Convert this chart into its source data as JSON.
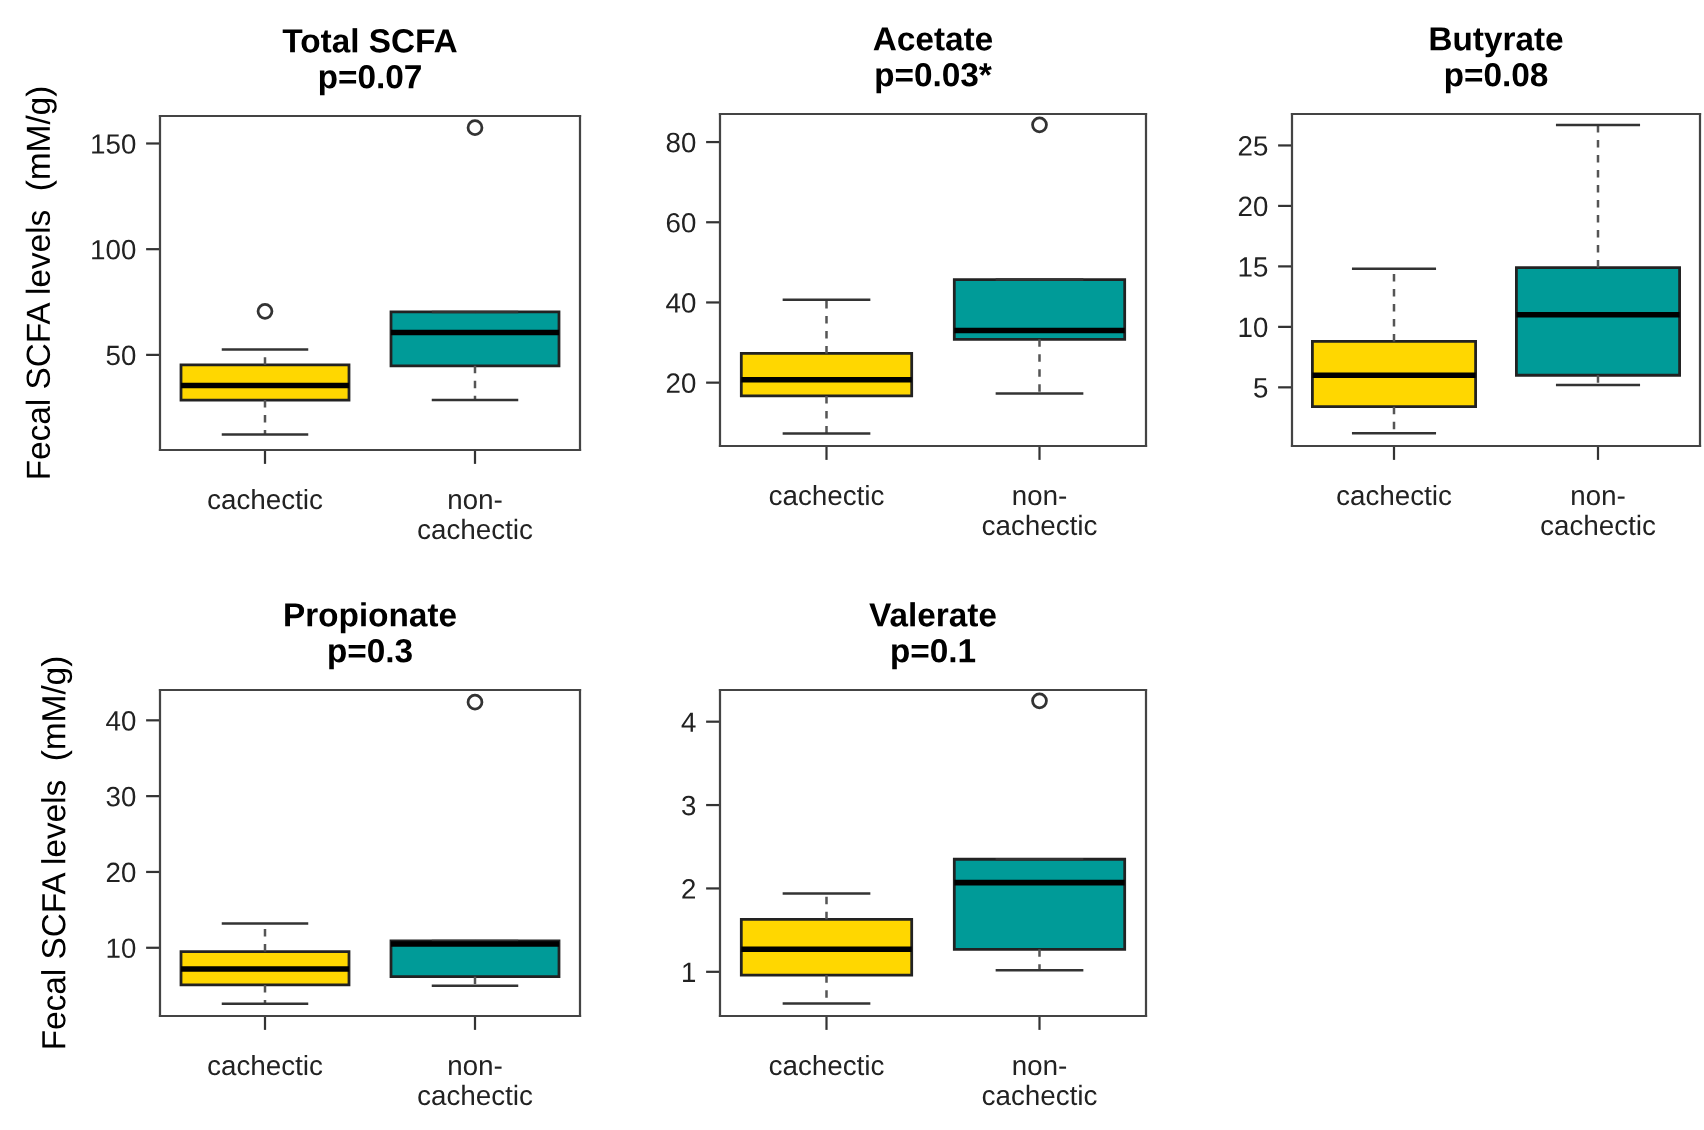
{
  "chart_data": [
    {
      "type": "box",
      "title": "Total SCFA",
      "subtitle": "p=0.07",
      "ylabel": "Fecal SCFA levels  (mM/g)",
      "categories": [
        "cachectic",
        "non-\ncachectic"
      ],
      "colors": [
        "#ffd700",
        "#009b98"
      ],
      "ylim": [
        5,
        163
      ],
      "yticks": [
        50,
        100,
        150
      ],
      "grid": false,
      "boxes": [
        {
          "low": 12.3,
          "q1": 28.6,
          "median": 35.5,
          "q3": 45.3,
          "high": 52.5,
          "outliers": [
            70.6
          ]
        },
        {
          "low": 28.6,
          "q1": 44.8,
          "median": 60.6,
          "q3": 70.3,
          "high": 70.3,
          "outliers": [
            157.5
          ]
        }
      ]
    },
    {
      "type": "box",
      "title": "Acetate",
      "subtitle": "p=0.03*",
      "categories": [
        "cachectic",
        "non-\ncachectic"
      ],
      "colors": [
        "#ffd700",
        "#009b98"
      ],
      "ylim": [
        4.2,
        87
      ],
      "yticks": [
        20,
        40,
        60,
        80
      ],
      "grid": false,
      "boxes": [
        {
          "low": 7.3,
          "q1": 16.7,
          "median": 20.7,
          "q3": 27.3,
          "high": 40.7
        },
        {
          "low": 17.3,
          "q1": 30.8,
          "median": 33,
          "q3": 45.7,
          "high": 45.7,
          "outliers": [
            84.3
          ]
        }
      ]
    },
    {
      "type": "box",
      "title": "Butyrate",
      "subtitle": "p=0.08",
      "categories": [
        "cachectic",
        "non-\ncachectic"
      ],
      "colors": [
        "#ffd700",
        "#009b98"
      ],
      "ylim": [
        0.15,
        27.6
      ],
      "yticks": [
        5,
        10,
        15,
        20,
        25
      ],
      "grid": false,
      "boxes": [
        {
          "low": 1.2,
          "q1": 3.4,
          "median": 6.0,
          "q3": 8.8,
          "high": 14.8
        },
        {
          "low": 5.2,
          "q1": 6.0,
          "median": 11.0,
          "q3": 14.9,
          "high": 26.7
        }
      ]
    },
    {
      "type": "box",
      "title": "Propionate",
      "subtitle": "p=0.3",
      "ylabel": "Fecal SCFA levels  (mM/g)",
      "categories": [
        "cachectic",
        "non-\ncachectic"
      ],
      "colors": [
        "#ffd700",
        "#009b98"
      ],
      "ylim": [
        1.0,
        44
      ],
      "yticks": [
        10,
        20,
        30,
        40
      ],
      "grid": false,
      "boxes": [
        {
          "low": 2.6,
          "q1": 5.1,
          "median": 7.2,
          "q3": 9.5,
          "high": 13.2
        },
        {
          "low": 5.0,
          "q1": 6.2,
          "median": 10.5,
          "q3": 10.9,
          "high": 10.9,
          "outliers": [
            42.4
          ]
        }
      ]
    },
    {
      "type": "box",
      "title": "Valerate",
      "subtitle": "p=0.1",
      "categories": [
        "cachectic",
        "non-\ncachectic"
      ],
      "colors": [
        "#ffd700",
        "#009b98"
      ],
      "ylim": [
        0.47,
        4.38
      ],
      "yticks": [
        1,
        2,
        3,
        4
      ],
      "grid": false,
      "boxes": [
        {
          "low": 0.62,
          "q1": 0.96,
          "median": 1.27,
          "q3": 1.63,
          "high": 1.94
        },
        {
          "low": 1.02,
          "q1": 1.27,
          "median": 2.07,
          "q3": 2.35,
          "high": 2.35,
          "outliers": [
            4.25
          ]
        }
      ]
    }
  ]
}
